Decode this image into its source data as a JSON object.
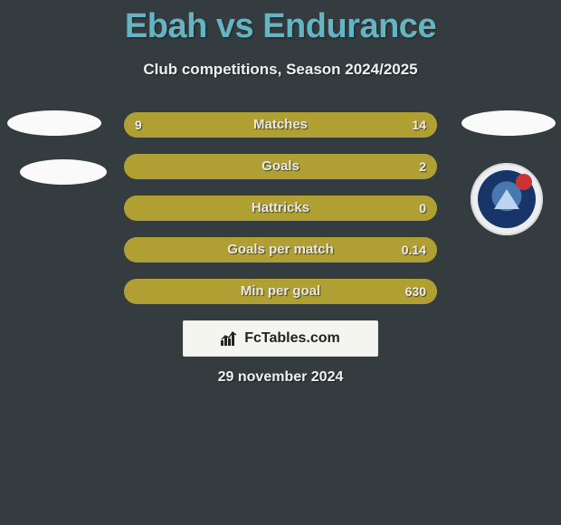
{
  "header": {
    "title": "Ebah vs Endurance",
    "subtitle": "Club competitions, Season 2024/2025",
    "title_color": "#64b5c4"
  },
  "colors": {
    "page_bg": "#353c3f",
    "bar_bg": "#4a4f44",
    "bar_fill": "#b0a033",
    "text_light": "#efefef"
  },
  "bars": [
    {
      "label": "Matches",
      "left": "9",
      "right": "14",
      "left_pct": 39,
      "right_pct": 61,
      "mode": "split"
    },
    {
      "label": "Goals",
      "left": "",
      "right": "2",
      "left_pct": 0,
      "right_pct": 100,
      "mode": "full"
    },
    {
      "label": "Hattricks",
      "left": "",
      "right": "0",
      "left_pct": 0,
      "right_pct": 100,
      "mode": "full"
    },
    {
      "label": "Goals per match",
      "left": "",
      "right": "0.14",
      "left_pct": 0,
      "right_pct": 100,
      "mode": "full"
    },
    {
      "label": "Min per goal",
      "left": "",
      "right": "630",
      "left_pct": 0,
      "right_pct": 100,
      "mode": "full"
    }
  ],
  "badge": {
    "text": "FcTables.com"
  },
  "footer": {
    "date": "29 november 2024"
  },
  "crest": {
    "name": "akwa-united-crest",
    "outer_bg": "#eceef0",
    "ring": "#18356a",
    "center": "#4a77b0",
    "ball": "#c33"
  }
}
